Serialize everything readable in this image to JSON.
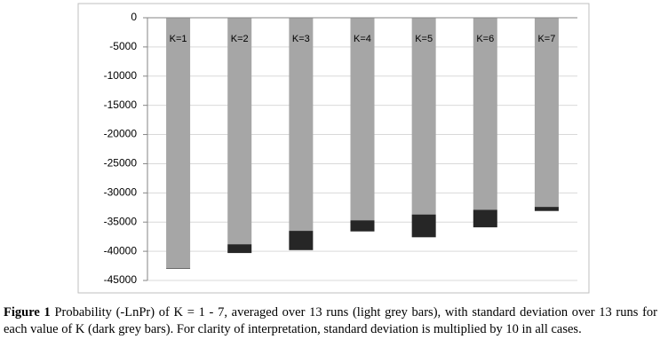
{
  "chart_data": {
    "type": "bar",
    "stacked": true,
    "categories": [
      "K=1",
      "K=2",
      "K=3",
      "K=4",
      "K=5",
      "K=6",
      "K=7"
    ],
    "series": [
      {
        "color": "#a6a6a6",
        "values": [
          -42900,
          -38800,
          -36500,
          -34700,
          -33700,
          -32900,
          -32400
        ]
      },
      {
        "color": "#262626",
        "values": [
          -100,
          -1500,
          -3300,
          -1900,
          -3900,
          -3000,
          -700
        ]
      }
    ],
    "ylim": [
      -45000,
      0
    ],
    "yticks": [
      0,
      -5000,
      -10000,
      -15000,
      -20000,
      -25000,
      -30000,
      -35000,
      -40000,
      -45000
    ],
    "grid": true
  },
  "caption": {
    "label": "Figure 1",
    "text": "Probability (-LnPr) of K = 1 - 7, averaged over 13 runs (light grey bars), with standard deviation over 13 runs for each value of K (dark grey bars). For clarity of interpretation, standard deviation is multiplied by 10 in all cases."
  }
}
